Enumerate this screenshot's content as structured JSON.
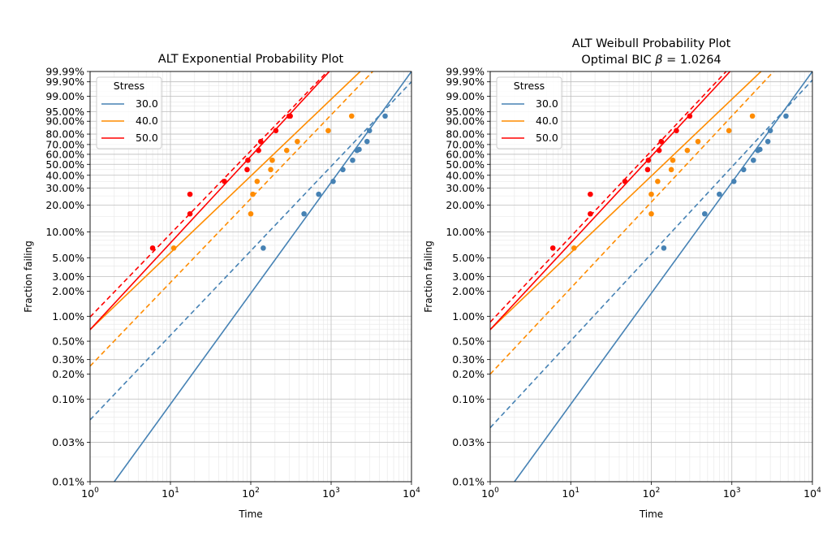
{
  "chart_data": [
    {
      "type": "scatter",
      "title": "ALT Exponential Probability Plot",
      "xlabel": "Time",
      "ylabel": "Fraction failing",
      "x_scale": "log",
      "y_scale": "weibull",
      "xlim": [
        1,
        10000
      ],
      "ylim": [
        0.0001,
        0.9999
      ],
      "x_tick_labels": [
        {
          "value": 1,
          "base": "10",
          "exp": "0"
        },
        {
          "value": 10,
          "base": "10",
          "exp": "1"
        },
        {
          "value": 100,
          "base": "10",
          "exp": "2"
        },
        {
          "value": 1000,
          "base": "10",
          "exp": "3"
        },
        {
          "value": 10000,
          "base": "10",
          "exp": "4"
        }
      ],
      "y_ticks": [
        {
          "value": 0.0001,
          "label": "0.01%"
        },
        {
          "value": 0.0003,
          "label": "0.03%"
        },
        {
          "value": 0.001,
          "label": "0.10%"
        },
        {
          "value": 0.002,
          "label": "0.20%"
        },
        {
          "value": 0.003,
          "label": "0.30%"
        },
        {
          "value": 0.005,
          "label": "0.50%"
        },
        {
          "value": 0.01,
          "label": "1.00%"
        },
        {
          "value": 0.02,
          "label": "2.00%"
        },
        {
          "value": 0.03,
          "label": "3.00%"
        },
        {
          "value": 0.05,
          "label": "5.00%"
        },
        {
          "value": 0.1,
          "label": "10.00%"
        },
        {
          "value": 0.2,
          "label": "20.00%"
        },
        {
          "value": 0.3,
          "label": "30.00%"
        },
        {
          "value": 0.4,
          "label": "40.00%"
        },
        {
          "value": 0.5,
          "label": "50.00%"
        },
        {
          "value": 0.6,
          "label": "60.00%"
        },
        {
          "value": 0.7,
          "label": "70.00%"
        },
        {
          "value": 0.8,
          "label": "80.00%"
        },
        {
          "value": 0.9,
          "label": "90.00%"
        },
        {
          "value": 0.95,
          "label": "95.00%"
        },
        {
          "value": 0.99,
          "label": "99.00%"
        },
        {
          "value": 0.999,
          "label": "99.90%"
        },
        {
          "value": 0.9999,
          "label": "99.99%"
        }
      ],
      "grid": true,
      "legend": {
        "title": "Stress",
        "position": "top-left"
      },
      "series": [
        {
          "name": "30.0",
          "color": "#4682b4",
          "points": [
            [
              143,
              0.065
            ],
            [
              460,
              0.16
            ],
            [
              700,
              0.26
            ],
            [
              1060,
              0.35
            ],
            [
              1400,
              0.45
            ],
            [
              1850,
              0.54
            ],
            [
              2100,
              0.64
            ],
            [
              2230,
              0.65
            ],
            [
              2800,
              0.73
            ],
            [
              3000,
              0.83
            ],
            [
              4700,
              0.93
            ]
          ],
          "fit_line": [
            [
              2,
              0.0001
            ],
            [
              10000,
              0.9999
            ]
          ],
          "individual_fit_line": [
            [
              1,
              0.00056
            ],
            [
              10000,
              0.999
            ]
          ]
        },
        {
          "name": "40.0",
          "color": "#ff8c00",
          "points": [
            [
              11,
              0.065
            ],
            [
              100,
              0.16
            ],
            [
              106,
              0.26
            ],
            [
              120,
              0.35
            ],
            [
              177,
              0.45
            ],
            [
              185,
              0.54
            ],
            [
              280,
              0.64
            ],
            [
              380,
              0.73
            ],
            [
              920,
              0.83
            ],
            [
              1800,
              0.93
            ]
          ],
          "fit_line": [
            [
              1,
              0.0069
            ],
            [
              2300,
              0.9999
            ]
          ],
          "individual_fit_line": [
            [
              1,
              0.0025
            ],
            [
              3300,
              0.9999
            ]
          ]
        },
        {
          "name": "50.0",
          "color": "#ff0000",
          "points": [
            [
              6,
              0.065
            ],
            [
              17.5,
              0.16
            ],
            [
              17.5,
              0.26
            ],
            [
              47,
              0.35
            ],
            [
              90,
              0.45
            ],
            [
              92,
              0.54
            ],
            [
              125,
              0.64
            ],
            [
              133,
              0.73
            ],
            [
              205,
              0.83
            ],
            [
              300,
              0.93
            ],
            [
              310,
              0.93
            ]
          ],
          "fit_line": [
            [
              1,
              0.0069
            ],
            [
              950,
              0.9999
            ]
          ],
          "individual_fit_line": [
            [
              1,
              0.0098
            ],
            [
              900,
              0.9999
            ]
          ]
        }
      ]
    },
    {
      "type": "scatter",
      "title": "ALT Weibull Probability Plot",
      "subtitle_text": "Optimal BIC ",
      "subtitle_symbol": "β",
      "subtitle_value": " = 1.0264",
      "xlabel": "Time",
      "ylabel": "Fraction failing",
      "x_scale": "log",
      "y_scale": "weibull",
      "xlim": [
        1,
        10000
      ],
      "ylim": [
        0.0001,
        0.9999
      ],
      "x_tick_labels": [
        {
          "value": 1,
          "base": "10",
          "exp": "0"
        },
        {
          "value": 10,
          "base": "10",
          "exp": "1"
        },
        {
          "value": 100,
          "base": "10",
          "exp": "2"
        },
        {
          "value": 1000,
          "base": "10",
          "exp": "3"
        },
        {
          "value": 10000,
          "base": "10",
          "exp": "4"
        }
      ],
      "y_ticks": [
        {
          "value": 0.0001,
          "label": "0.01%"
        },
        {
          "value": 0.0003,
          "label": "0.03%"
        },
        {
          "value": 0.001,
          "label": "0.10%"
        },
        {
          "value": 0.002,
          "label": "0.20%"
        },
        {
          "value": 0.003,
          "label": "0.30%"
        },
        {
          "value": 0.005,
          "label": "0.50%"
        },
        {
          "value": 0.01,
          "label": "1.00%"
        },
        {
          "value": 0.02,
          "label": "2.00%"
        },
        {
          "value": 0.03,
          "label": "3.00%"
        },
        {
          "value": 0.05,
          "label": "5.00%"
        },
        {
          "value": 0.1,
          "label": "10.00%"
        },
        {
          "value": 0.2,
          "label": "20.00%"
        },
        {
          "value": 0.3,
          "label": "30.00%"
        },
        {
          "value": 0.4,
          "label": "40.00%"
        },
        {
          "value": 0.5,
          "label": "50.00%"
        },
        {
          "value": 0.6,
          "label": "60.00%"
        },
        {
          "value": 0.7,
          "label": "70.00%"
        },
        {
          "value": 0.8,
          "label": "80.00%"
        },
        {
          "value": 0.9,
          "label": "90.00%"
        },
        {
          "value": 0.95,
          "label": "95.00%"
        },
        {
          "value": 0.99,
          "label": "99.00%"
        },
        {
          "value": 0.999,
          "label": "99.90%"
        },
        {
          "value": 0.9999,
          "label": "99.99%"
        }
      ],
      "grid": true,
      "legend": {
        "title": "Stress",
        "position": "top-left"
      },
      "series": [
        {
          "name": "30.0",
          "color": "#4682b4",
          "points": [
            [
              143,
              0.065
            ],
            [
              460,
              0.16
            ],
            [
              700,
              0.26
            ],
            [
              1060,
              0.35
            ],
            [
              1400,
              0.45
            ],
            [
              1850,
              0.54
            ],
            [
              2100,
              0.64
            ],
            [
              2230,
              0.65
            ],
            [
              2800,
              0.73
            ],
            [
              3000,
              0.83
            ],
            [
              4700,
              0.93
            ]
          ],
          "fit_line": [
            [
              2,
              0.0001
            ],
            [
              10000,
              0.9999
            ]
          ],
          "individual_fit_line": [
            [
              1,
              0.00045
            ],
            [
              10000,
              0.9993
            ]
          ]
        },
        {
          "name": "40.0",
          "color": "#ff8c00",
          "points": [
            [
              11,
              0.065
            ],
            [
              100,
              0.16
            ],
            [
              100,
              0.26
            ],
            [
              120,
              0.35
            ],
            [
              177,
              0.45
            ],
            [
              185,
              0.54
            ],
            [
              280,
              0.64
            ],
            [
              380,
              0.73
            ],
            [
              920,
              0.83
            ],
            [
              1800,
              0.93
            ]
          ],
          "fit_line": [
            [
              1,
              0.0069
            ],
            [
              2300,
              0.9999
            ]
          ],
          "individual_fit_line": [
            [
              1,
              0.002
            ],
            [
              3300,
              0.9999
            ]
          ]
        },
        {
          "name": "50.0",
          "color": "#ff0000",
          "points": [
            [
              6,
              0.065
            ],
            [
              17.5,
              0.16
            ],
            [
              17.5,
              0.26
            ],
            [
              47,
              0.35
            ],
            [
              90,
              0.45
            ],
            [
              92,
              0.54
            ],
            [
              125,
              0.64
            ],
            [
              133,
              0.73
            ],
            [
              205,
              0.83
            ],
            [
              300,
              0.93
            ]
          ],
          "fit_line": [
            [
              1,
              0.0069
            ],
            [
              950,
              0.9999
            ]
          ],
          "individual_fit_line": [
            [
              1,
              0.0085
            ],
            [
              850,
              0.9999
            ]
          ]
        }
      ]
    }
  ]
}
